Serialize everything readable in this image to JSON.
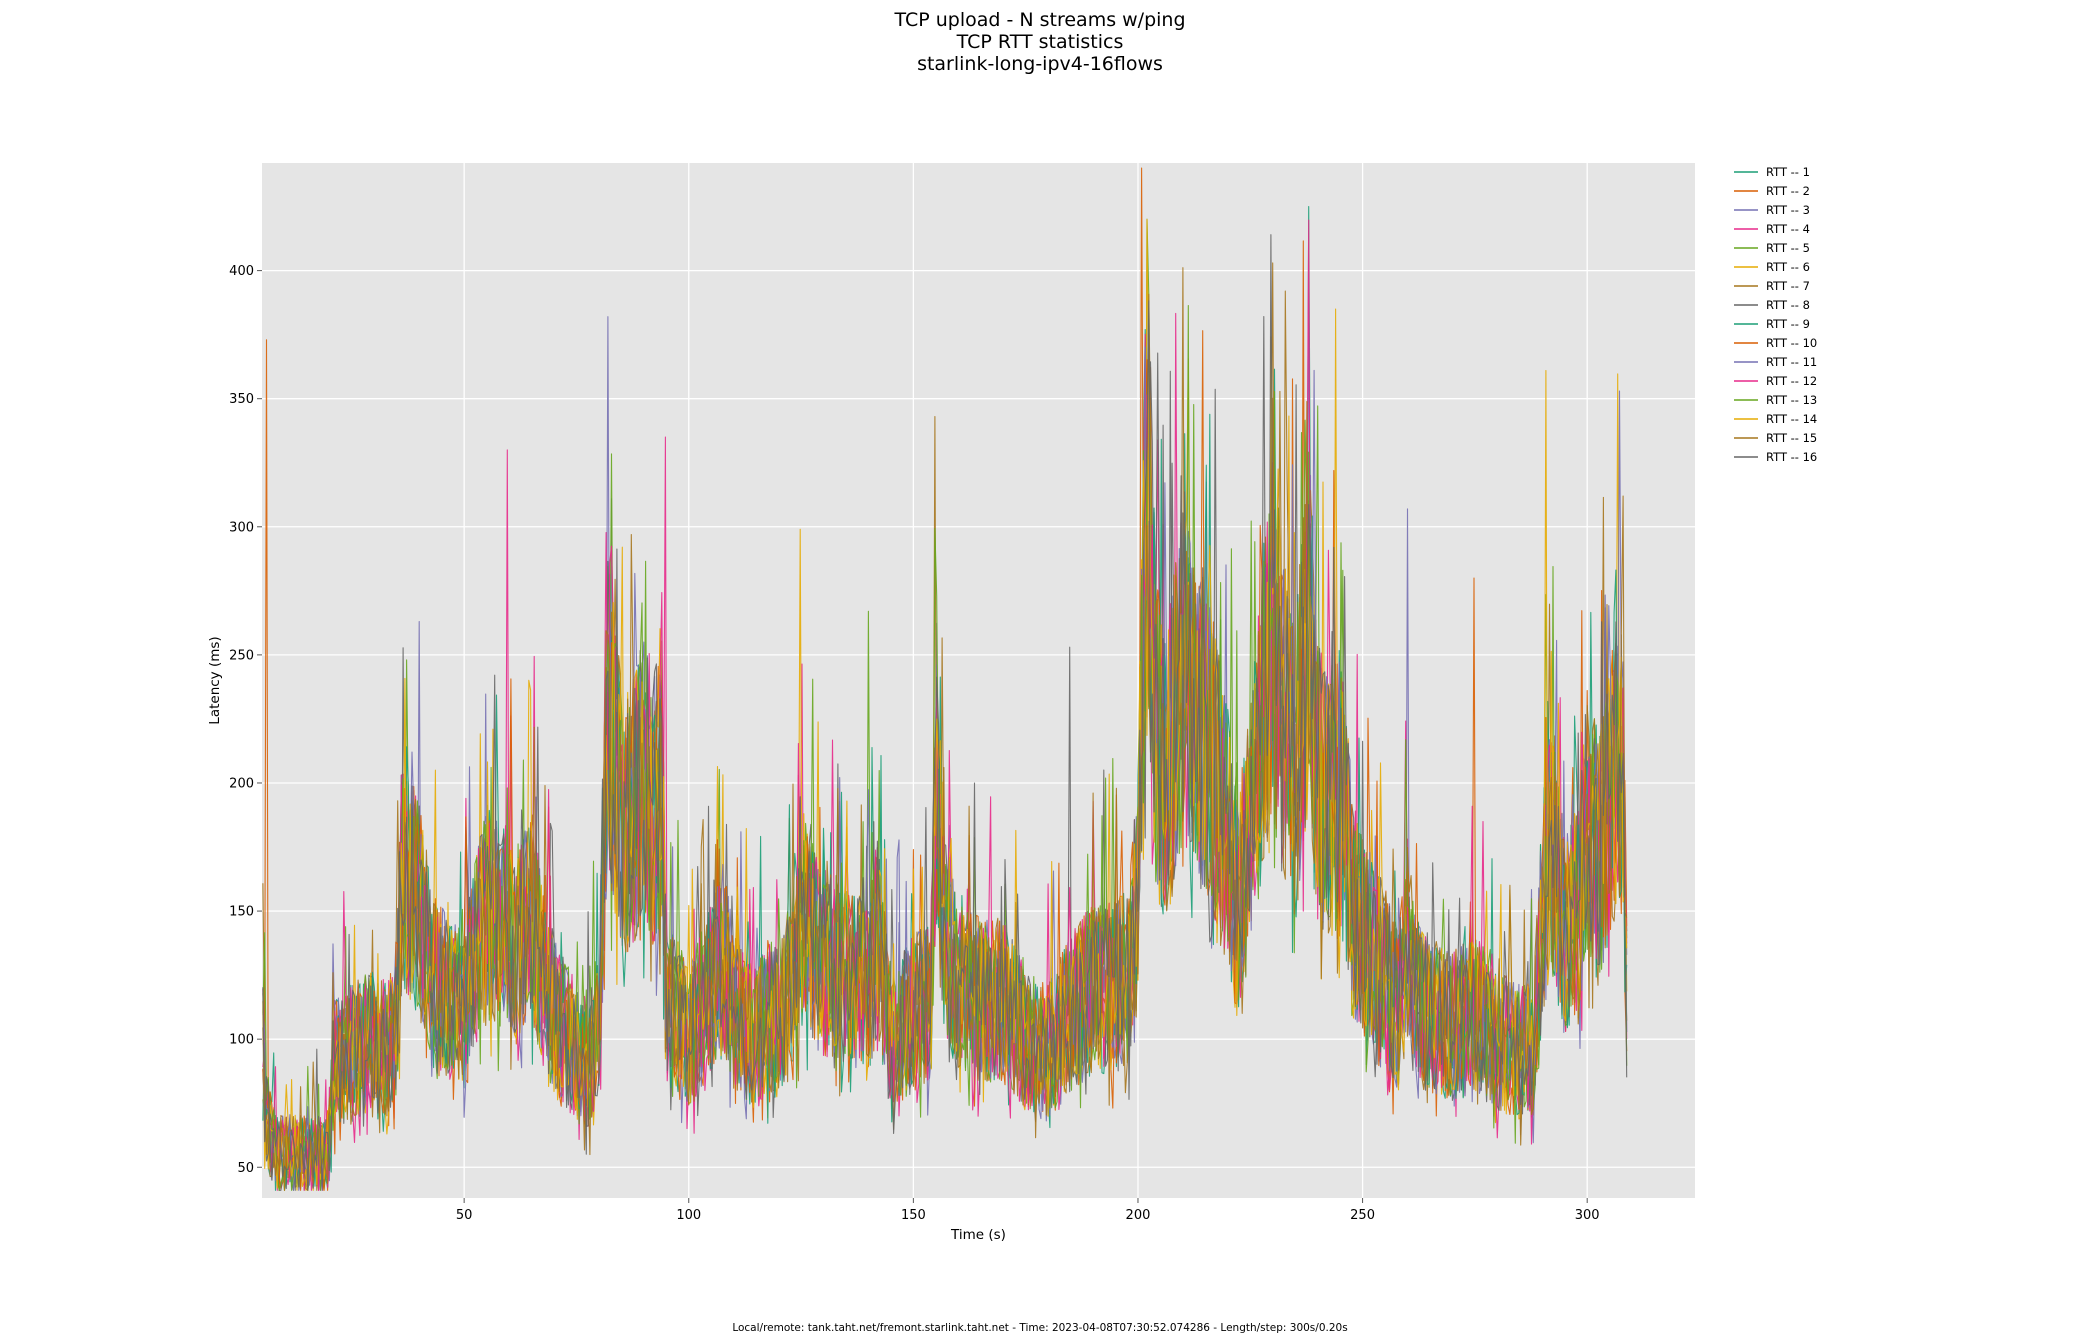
{
  "chart_data": {
    "type": "line",
    "title_lines": [
      "TCP upload - N streams w/ping",
      "TCP RTT statistics",
      "starlink-long-ipv4-16flows"
    ],
    "xlabel": "Time (s)",
    "ylabel": "Latency (ms)",
    "xlim": [
      5,
      324
    ],
    "ylim": [
      38,
      442
    ],
    "x_ticks": [
      50,
      100,
      150,
      200,
      250,
      300
    ],
    "y_ticks": [
      50,
      100,
      150,
      200,
      250,
      300,
      350,
      400
    ],
    "grid": true,
    "legend_position": "outside-right",
    "footer": "Local/remote: tank.taht.net/fremont.starlink.taht.net - Time: 2023-04-08T07:30:52.074286 - Length/step: 300s/0.20s",
    "x_range": [
      5.2,
      309
    ],
    "profile": {
      "x": [
        5,
        6,
        8,
        10,
        15,
        19,
        20,
        21,
        25,
        30,
        33,
        35,
        36,
        38,
        40,
        42,
        43,
        45,
        48,
        50,
        52,
        55,
        58,
        59,
        60,
        62,
        65,
        68,
        70,
        75,
        78,
        80,
        82,
        84,
        86,
        88,
        90,
        92,
        94,
        95,
        97,
        100,
        105,
        108,
        110,
        115,
        118,
        120,
        124,
        125,
        127,
        130,
        135,
        140,
        142,
        145,
        150,
        154,
        155,
        157,
        160,
        165,
        170,
        175,
        180,
        185,
        190,
        195,
        198,
        200,
        202,
        204,
        206,
        210,
        215,
        220,
        222,
        225,
        228,
        230,
        232,
        235,
        238,
        240,
        242,
        245,
        248,
        250,
        255,
        258,
        260,
        262,
        265,
        270,
        275,
        280,
        285,
        288,
        290,
        292,
        295,
        298,
        300,
        303,
        305,
        307,
        308,
        309
      ],
      "y": [
        100,
        70,
        55,
        55,
        55,
        55,
        60,
        90,
        95,
        100,
        95,
        110,
        160,
        160,
        150,
        135,
        120,
        120,
        115,
        110,
        130,
        150,
        145,
        145,
        140,
        135,
        150,
        120,
        110,
        95,
        90,
        110,
        230,
        200,
        180,
        190,
        205,
        190,
        200,
        110,
        110,
        100,
        120,
        130,
        110,
        100,
        110,
        105,
        130,
        150,
        140,
        130,
        125,
        120,
        140,
        100,
        110,
        115,
        200,
        140,
        120,
        115,
        115,
        100,
        95,
        110,
        120,
        120,
        125,
        160,
        330,
        220,
        200,
        240,
        220,
        180,
        150,
        180,
        230,
        260,
        230,
        200,
        270,
        200,
        190,
        200,
        150,
        140,
        125,
        110,
        140,
        115,
        110,
        105,
        110,
        100,
        95,
        95,
        150,
        175,
        140,
        150,
        185,
        175,
        190,
        215,
        200,
        95
      ]
    },
    "series": [
      {
        "name": "RTT -- 1",
        "color": "#1b9e77"
      },
      {
        "name": "RTT -- 2",
        "color": "#d95f02"
      },
      {
        "name": "RTT -- 3",
        "color": "#7570b3"
      },
      {
        "name": "RTT -- 4",
        "color": "#e7298a"
      },
      {
        "name": "RTT -- 5",
        "color": "#66a61e"
      },
      {
        "name": "RTT -- 6",
        "color": "#e6ab02"
      },
      {
        "name": "RTT -- 7",
        "color": "#a6761d"
      },
      {
        "name": "RTT -- 8",
        "color": "#666666"
      },
      {
        "name": "RTT -- 9",
        "color": "#1b9e77"
      },
      {
        "name": "RTT -- 10",
        "color": "#d95f02"
      },
      {
        "name": "RTT -- 11",
        "color": "#7570b3"
      },
      {
        "name": "RTT -- 12",
        "color": "#e7298a"
      },
      {
        "name": "RTT -- 13",
        "color": "#66a61e"
      },
      {
        "name": "RTT -- 14",
        "color": "#e6ab02"
      },
      {
        "name": "RTT -- 15",
        "color": "#a6761d"
      },
      {
        "name": "RTT -- 16",
        "color": "#666666"
      }
    ],
    "peaks": [
      {
        "x": 5.9,
        "y": 373,
        "series": 2
      },
      {
        "x": 40,
        "y": 263,
        "series": 3
      },
      {
        "x": 59.5,
        "y": 330,
        "series": 4
      },
      {
        "x": 82,
        "y": 382,
        "series": 3
      },
      {
        "x": 95,
        "y": 335,
        "series": 4
      },
      {
        "x": 125,
        "y": 299,
        "series": 6
      },
      {
        "x": 140,
        "y": 267,
        "series": 5
      },
      {
        "x": 155,
        "y": 343,
        "series": 7
      },
      {
        "x": 185,
        "y": 253,
        "series": 8
      },
      {
        "x": 201,
        "y": 440,
        "series": 2
      },
      {
        "x": 202,
        "y": 420,
        "series": 6
      },
      {
        "x": 230,
        "y": 403,
        "series": 7
      },
      {
        "x": 233,
        "y": 392,
        "series": 7
      },
      {
        "x": 238,
        "y": 425,
        "series": 1
      },
      {
        "x": 244,
        "y": 385,
        "series": 6
      },
      {
        "x": 260,
        "y": 307,
        "series": 3
      },
      {
        "x": 275,
        "y": 280,
        "series": 10
      },
      {
        "x": 291,
        "y": 361,
        "series": 14
      },
      {
        "x": 307,
        "y": 353,
        "series": 11
      }
    ]
  }
}
